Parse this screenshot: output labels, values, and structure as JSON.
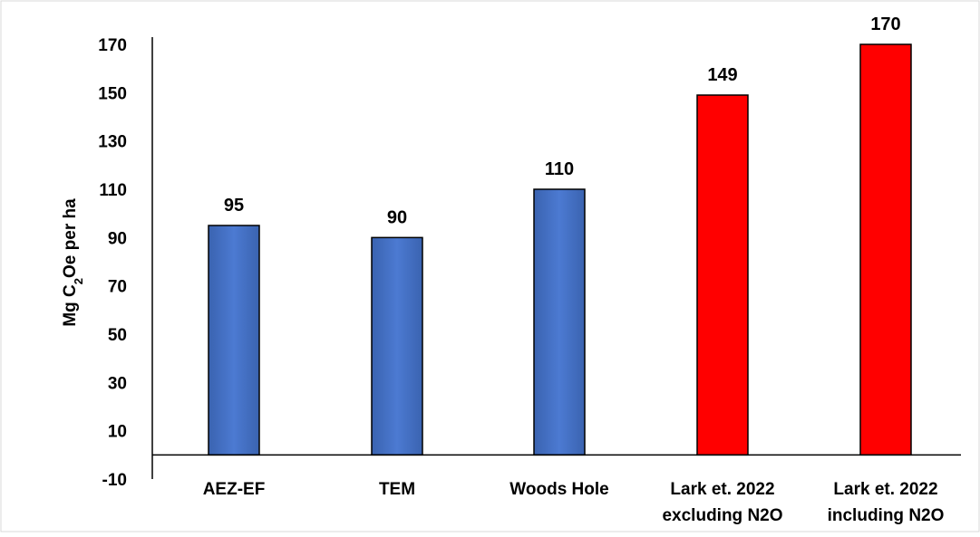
{
  "chart_data": {
    "type": "bar",
    "ylabel": {
      "prefix": "Mg C",
      "subscript": "2",
      "suffix": "Oe per ha"
    },
    "ylim": [
      -10,
      170
    ],
    "yticks": [
      "170",
      "150",
      "130",
      "110",
      "90",
      "70",
      "50",
      "30",
      "10",
      "-10"
    ],
    "ytick_values": [
      170,
      150,
      130,
      110,
      90,
      70,
      50,
      30,
      10,
      -10
    ],
    "categories": [
      [
        "AEZ-EF"
      ],
      [
        "TEM"
      ],
      [
        "Woods Hole"
      ],
      [
        "Lark et. 2022",
        "excluding N2O"
      ],
      [
        "Lark et. 2022",
        "including N2O"
      ]
    ],
    "values": [
      95,
      90,
      110,
      149,
      170
    ],
    "data_labels": [
      "95",
      "90",
      "110",
      "149",
      "170"
    ],
    "bar_colors": [
      "#4472C4",
      "#4472C4",
      "#4472C4",
      "#FF0000",
      "#FF0000"
    ],
    "grid": false,
    "legend": "none"
  }
}
